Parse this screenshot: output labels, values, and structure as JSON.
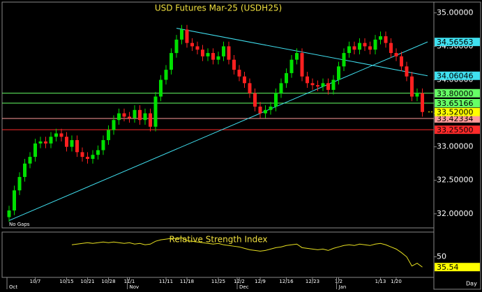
{
  "chart_data": [
    {
      "type": "candlestick",
      "title": "USD Futures Mar-25 (USDH25)",
      "note": "No Gaps",
      "up_color": "#00e000",
      "down_color": "#ff2020",
      "open": [
        31.95,
        32.05,
        32.35,
        32.55,
        32.75,
        32.85,
        33.05,
        33.08,
        33.05,
        33.15,
        33.2,
        33.15,
        33.0,
        33.1,
        32.92,
        32.85,
        32.82,
        32.88,
        32.95,
        33.1,
        33.25,
        33.4,
        33.5,
        33.45,
        33.43,
        33.55,
        33.4,
        33.5,
        33.3,
        33.75,
        34.0,
        34.15,
        34.4,
        34.6,
        34.75,
        34.55,
        34.5,
        34.45,
        34.35,
        34.4,
        34.3,
        34.35,
        34.5,
        34.3,
        34.15,
        34.05,
        33.95,
        33.8,
        33.6,
        33.5,
        33.55,
        33.6,
        33.8,
        33.95,
        34.1,
        34.3,
        34.4,
        34.05,
        33.95,
        33.92,
        33.9,
        33.95,
        33.85,
        34.0,
        34.2,
        34.4,
        34.5,
        34.45,
        34.55,
        34.5,
        34.45,
        34.6,
        34.65,
        34.55,
        34.4,
        34.35,
        34.2,
        34.05,
        33.75,
        33.8
      ],
      "high": [
        32.12,
        32.42,
        32.62,
        32.82,
        32.92,
        33.12,
        33.15,
        33.15,
        33.22,
        33.27,
        33.27,
        33.22,
        33.17,
        33.17,
        32.99,
        32.92,
        32.95,
        33.02,
        33.17,
        33.32,
        33.47,
        33.57,
        33.57,
        33.52,
        33.62,
        33.62,
        33.57,
        33.57,
        33.82,
        34.07,
        34.22,
        34.47,
        34.67,
        34.82,
        34.82,
        34.62,
        34.57,
        34.52,
        34.47,
        34.47,
        34.42,
        34.57,
        34.57,
        34.37,
        34.22,
        34.12,
        34.02,
        33.87,
        33.67,
        33.62,
        33.67,
        33.87,
        34.02,
        34.17,
        34.37,
        34.47,
        34.47,
        34.12,
        34.02,
        33.99,
        34.02,
        34.02,
        34.07,
        34.27,
        34.47,
        34.57,
        34.57,
        34.62,
        34.62,
        34.57,
        34.67,
        34.72,
        34.72,
        34.62,
        34.47,
        34.42,
        34.27,
        34.12,
        33.87,
        33.87
      ],
      "low": [
        31.88,
        31.98,
        32.28,
        32.48,
        32.68,
        32.78,
        32.98,
        32.98,
        32.98,
        33.08,
        33.08,
        32.93,
        32.93,
        32.85,
        32.78,
        32.75,
        32.75,
        32.81,
        32.88,
        33.03,
        33.18,
        33.33,
        33.38,
        33.36,
        33.36,
        33.33,
        33.33,
        33.23,
        33.23,
        33.68,
        33.93,
        34.08,
        34.33,
        34.53,
        34.48,
        34.43,
        34.38,
        34.28,
        34.28,
        34.23,
        34.23,
        34.28,
        34.23,
        34.08,
        33.98,
        33.88,
        33.73,
        33.53,
        33.43,
        33.43,
        33.48,
        33.53,
        33.73,
        33.88,
        34.03,
        34.23,
        33.98,
        33.88,
        33.85,
        33.83,
        33.83,
        33.78,
        33.78,
        33.93,
        34.13,
        34.33,
        34.38,
        34.38,
        34.43,
        34.38,
        34.38,
        34.53,
        34.48,
        34.33,
        34.28,
        34.13,
        33.98,
        33.68,
        33.68,
        33.45
      ],
      "close": [
        32.05,
        32.35,
        32.55,
        32.75,
        32.85,
        33.05,
        33.08,
        33.05,
        33.15,
        33.2,
        33.15,
        33.0,
        33.1,
        32.92,
        32.85,
        32.82,
        32.88,
        32.95,
        33.1,
        33.25,
        33.4,
        33.5,
        33.45,
        33.43,
        33.55,
        33.4,
        33.5,
        33.3,
        33.75,
        34.0,
        34.15,
        34.4,
        34.6,
        34.75,
        34.55,
        34.5,
        34.45,
        34.35,
        34.4,
        34.3,
        34.35,
        34.5,
        34.3,
        34.15,
        34.05,
        33.95,
        33.8,
        33.6,
        33.5,
        33.55,
        33.6,
        33.8,
        33.95,
        34.1,
        34.3,
        34.4,
        34.05,
        33.95,
        33.92,
        33.9,
        33.95,
        33.85,
        34.0,
        34.2,
        34.4,
        34.5,
        34.45,
        34.55,
        34.5,
        34.45,
        34.6,
        34.65,
        34.55,
        34.4,
        34.35,
        34.2,
        34.05,
        33.75,
        33.8,
        33.52
      ],
      "last_close_label": "33.52000",
      "ylim": [
        31.79,
        35.16
      ],
      "yticks": [
        {
          "value": 32,
          "label": "32.00000"
        },
        {
          "value": 32.5,
          "label": "32.50000"
        },
        {
          "value": 33,
          "label": "33.00000"
        },
        {
          "value": 33.5,
          "label": "33.50000"
        },
        {
          "value": 34,
          "label": "34.00000"
        },
        {
          "value": 34.5,
          "label": "34.50000"
        },
        {
          "value": 35,
          "label": "35.00000"
        }
      ],
      "hlines": [
        {
          "value": 33.8,
          "label": "33.80000",
          "color": "#66ff66"
        },
        {
          "value": 33.65166,
          "label": "33.65166",
          "color": "#66ff66"
        },
        {
          "value": 33.42334,
          "label": "33.42334",
          "color": "#ff9a9a"
        },
        {
          "value": 33.255,
          "label": "33.25500",
          "color": "#ff2a2a"
        }
      ],
      "trendlines": [
        {
          "x": [
            0,
            80
          ],
          "y": [
            31.9,
            34.56563
          ],
          "color": "#40e0f0"
        },
        {
          "x": [
            32,
            80
          ],
          "y": [
            34.77,
            34.06046
          ],
          "color": "#40e0f0"
        }
      ],
      "xticks": [
        {
          "value": 5,
          "label": "10/7"
        },
        {
          "value": 11,
          "label": "10/15"
        },
        {
          "value": 15,
          "label": "10/21"
        },
        {
          "value": 19,
          "label": "10/28"
        },
        {
          "value": 23,
          "label": "11/1"
        },
        {
          "value": 30,
          "label": "11/11"
        },
        {
          "value": 34,
          "label": "11/18"
        },
        {
          "value": 40,
          "label": "11/25"
        },
        {
          "value": 44,
          "label": "12/2"
        },
        {
          "value": 48,
          "label": "12/9"
        },
        {
          "value": 53,
          "label": "12/16"
        },
        {
          "value": 58,
          "label": "12/23"
        },
        {
          "value": 63,
          "label": "1/2"
        },
        {
          "value": 71,
          "label": "1/13"
        },
        {
          "value": 74,
          "label": "1/20"
        }
      ],
      "months": [
        {
          "value": 0,
          "label": "Oct"
        },
        {
          "value": 23,
          "label": "Nov"
        },
        {
          "value": 44,
          "label": "Dec"
        },
        {
          "value": 63,
          "label": "Jan"
        }
      ],
      "period": "Day"
    },
    {
      "type": "line",
      "title": "Relative Strength Index",
      "series": [
        {
          "name": "RSI",
          "color": "#e8e020",
          "values": [
            null,
            null,
            null,
            null,
            null,
            null,
            null,
            null,
            null,
            null,
            null,
            null,
            67,
            68,
            69,
            70,
            69,
            70,
            71,
            70,
            71,
            70,
            69,
            70,
            68,
            69,
            67,
            68,
            72,
            74,
            75,
            76,
            76,
            77,
            73,
            72,
            71,
            70,
            69,
            68,
            69,
            67,
            66,
            65,
            64,
            62,
            60,
            59,
            58,
            59,
            61,
            63,
            64,
            66,
            67,
            68,
            63,
            62,
            61,
            60,
            61,
            59,
            62,
            64,
            66,
            67,
            66,
            68,
            67,
            66,
            68,
            69,
            67,
            64,
            61,
            56,
            50,
            37,
            41,
            35.54
          ]
        }
      ],
      "ylim": [
        21,
        85
      ],
      "yticks": [
        50
      ]
    }
  ]
}
